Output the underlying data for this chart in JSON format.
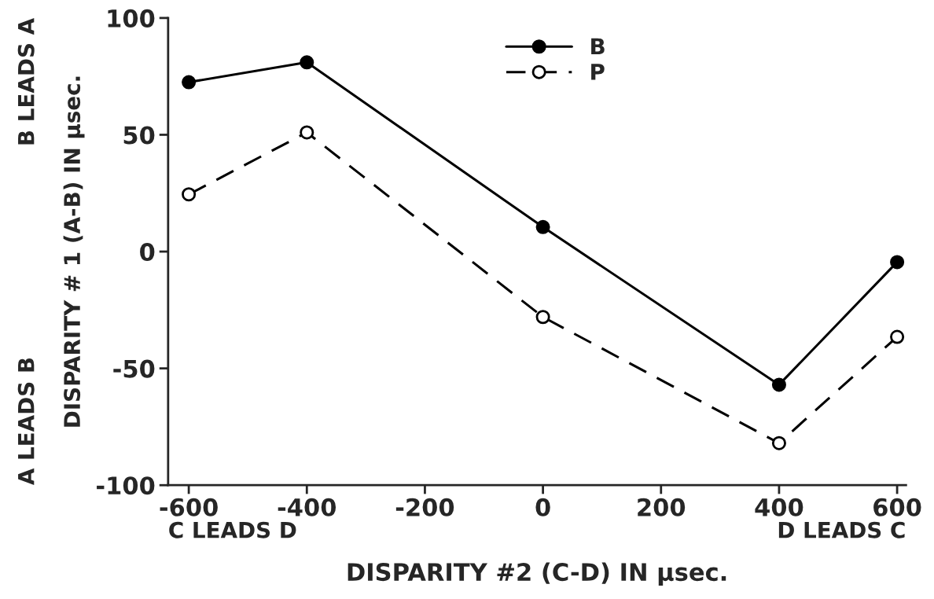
{
  "chart_data": {
    "type": "line",
    "xlabel": "DISPARITY #2 (C-D) IN μsec.",
    "ylabel": "DISPARITY # 1 (A-B) IN μsec.",
    "x": [
      -600,
      -400,
      0,
      400,
      600
    ],
    "series": [
      {
        "name": "B",
        "color": "#000000",
        "values": [
          72.5,
          81,
          10.5,
          -57,
          -4.5
        ],
        "marker": "circle",
        "line_style": "solid"
      },
      {
        "name": "P",
        "color": "#000000",
        "values": [
          24.5,
          51,
          -28,
          -82,
          -36.5
        ],
        "marker": "circle",
        "line_style": "dashed"
      }
    ],
    "xlim": [
      -635,
      615
    ],
    "ylim": [
      -100,
      100
    ],
    "xticks": [
      -600,
      -400,
      -200,
      0,
      200,
      400,
      600
    ],
    "yticks": [
      -100,
      -50,
      0,
      50,
      100
    ],
    "annotations": [
      "C LEADS D",
      "D LEADS C",
      "B LEADS A",
      "A LEADS B"
    ],
    "grid": false,
    "legend": "top right"
  }
}
